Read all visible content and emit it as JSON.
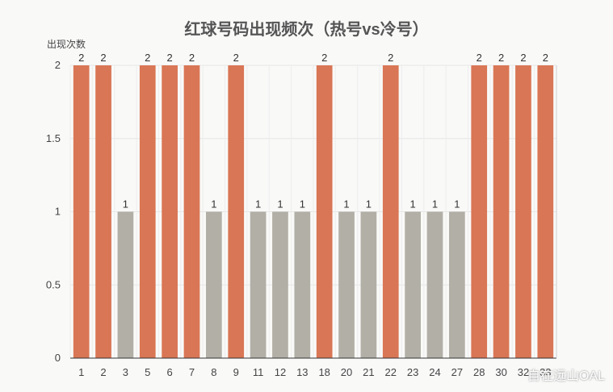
{
  "chart_data": {
    "type": "bar",
    "title": "红球号码出现频次（热号vs冷号）",
    "ylabel": "出现次数",
    "xlabel": "",
    "ylim": [
      0,
      2
    ],
    "yticks": [
      "0",
      "0.5",
      "1",
      "1.5",
      "2"
    ],
    "categories": [
      "1",
      "2",
      "3",
      "5",
      "6",
      "7",
      "8",
      "9",
      "11",
      "12",
      "13",
      "18",
      "20",
      "21",
      "22",
      "23",
      "24",
      "27",
      "28",
      "30",
      "32",
      "33"
    ],
    "values": [
      2,
      2,
      1,
      2,
      2,
      2,
      1,
      2,
      1,
      1,
      1,
      2,
      1,
      1,
      2,
      1,
      1,
      1,
      2,
      2,
      2,
      2
    ],
    "colors": {
      "hot": "#d97655",
      "cold": "#b1afa6"
    },
    "grid": true,
    "legend": "none"
  },
  "watermark": "自在远山OAL"
}
